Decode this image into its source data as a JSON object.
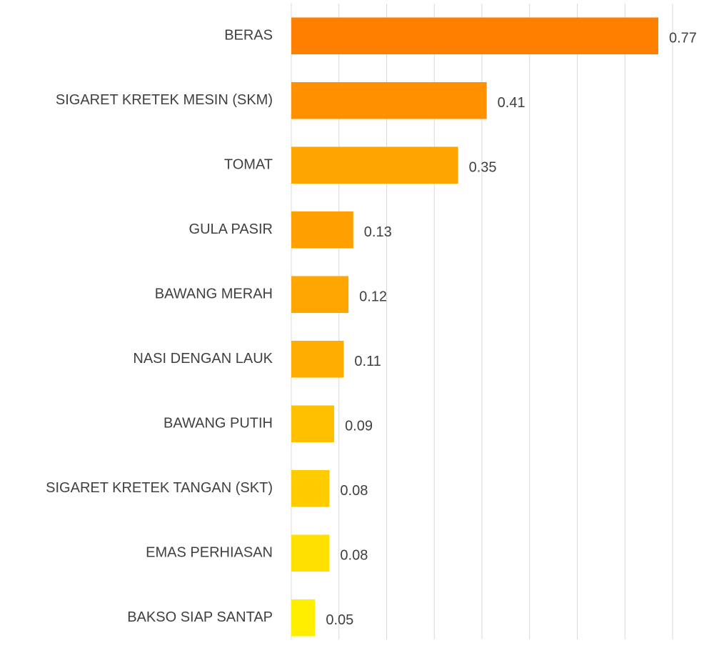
{
  "chart_data": {
    "type": "barh",
    "categories": [
      "BERAS",
      "SIGARET KRETEK MESIN (SKM)",
      "TOMAT",
      "GULA PASIR",
      "BAWANG MERAH",
      "NASI DENGAN LAUK",
      "BAWANG PUTIH",
      "SIGARET KRETEK TANGAN (SKT)",
      "EMAS PERHIASAN",
      "BAKSO SIAP SANTAP"
    ],
    "values": [
      0.77,
      0.41,
      0.35,
      0.13,
      0.12,
      0.11,
      0.09,
      0.08,
      0.08,
      0.05
    ],
    "colors": [
      "#ff7f00",
      "#ff9000",
      "#ffa500",
      "#ffa000",
      "#ffa600",
      "#ffad00",
      "#ffc000",
      "#ffcc00",
      "#ffe000",
      "#ffee00"
    ],
    "xlim": [
      0,
      0.8
    ],
    "xticks": [
      0,
      0.1,
      0.2,
      0.3,
      0.4,
      0.5,
      0.6,
      0.7,
      0.8
    ],
    "grid": true
  }
}
